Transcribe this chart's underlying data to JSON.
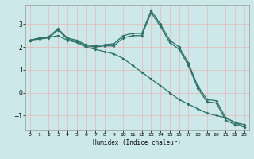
{
  "xlabel": "Humidex (Indice chaleur)",
  "background_color": "#cce8e8",
  "grid_color_major": "#f0b0b0",
  "grid_color_minor": "#e8d0d0",
  "line_color": "#2d7068",
  "xlim": [
    -0.5,
    23.5
  ],
  "ylim": [
    -1.65,
    3.85
  ],
  "yticks": [
    -1,
    0,
    1,
    2,
    3
  ],
  "xticks": [
    0,
    1,
    2,
    3,
    4,
    5,
    6,
    7,
    8,
    9,
    10,
    11,
    12,
    13,
    14,
    15,
    16,
    17,
    18,
    19,
    20,
    21,
    22,
    23
  ],
  "series1_x": [
    0,
    1,
    2,
    3,
    4,
    5,
    6,
    7,
    8,
    9,
    10,
    11,
    12,
    13,
    14,
    15,
    16,
    17,
    18,
    19,
    20,
    21,
    22,
    23
  ],
  "series1_y": [
    2.3,
    2.4,
    2.45,
    2.8,
    2.4,
    2.3,
    2.1,
    2.05,
    2.1,
    2.15,
    2.5,
    2.6,
    2.6,
    3.6,
    3.0,
    2.3,
    2.0,
    1.3,
    0.3,
    -0.3,
    -0.35,
    -1.1,
    -1.3,
    -1.4
  ],
  "series2_x": [
    0,
    1,
    2,
    3,
    4,
    5,
    6,
    7,
    8,
    9,
    10,
    11,
    12,
    13,
    14,
    15,
    16,
    17,
    18,
    19,
    20,
    21,
    22,
    23
  ],
  "series2_y": [
    2.3,
    2.35,
    2.4,
    2.75,
    2.35,
    2.25,
    2.05,
    2.0,
    2.05,
    2.05,
    2.4,
    2.5,
    2.5,
    3.5,
    2.9,
    2.2,
    1.9,
    1.2,
    0.2,
    -0.4,
    -0.45,
    -1.2,
    -1.4,
    -1.5
  ],
  "series3_x": [
    0,
    1,
    2,
    3,
    4,
    5,
    6,
    7,
    8,
    9,
    10,
    11,
    12,
    13,
    14,
    15,
    16,
    17,
    18,
    19,
    20,
    21,
    22,
    23
  ],
  "series3_y": [
    2.3,
    2.38,
    2.42,
    2.5,
    2.3,
    2.2,
    2.0,
    1.9,
    1.8,
    1.7,
    1.5,
    1.2,
    0.9,
    0.6,
    0.3,
    0.0,
    -0.3,
    -0.5,
    -0.7,
    -0.9,
    -1.0,
    -1.1,
    -1.3,
    -1.5
  ]
}
